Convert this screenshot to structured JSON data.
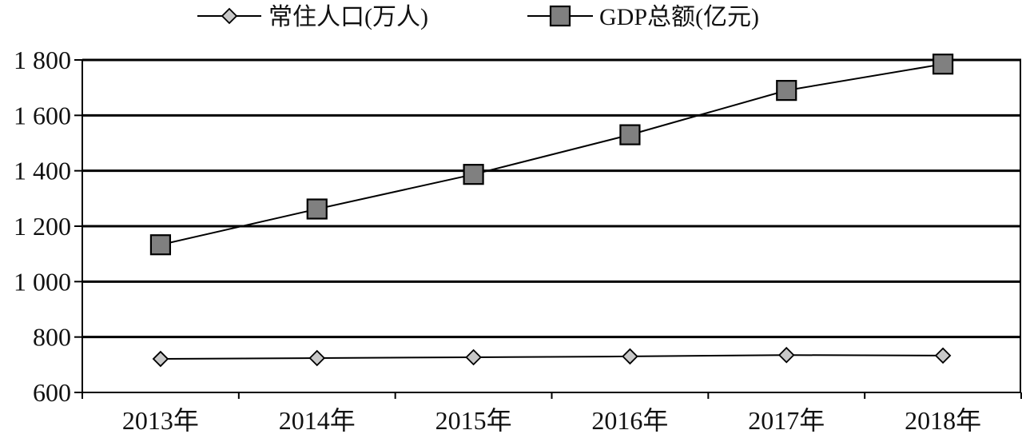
{
  "chart_data": {
    "type": "line",
    "categories": [
      "2013年",
      "2014年",
      "2015年",
      "2016年",
      "2017年",
      "2018年"
    ],
    "series": [
      {
        "name": "常住人口(万人)",
        "values": [
          721,
          724,
          727,
          730,
          735,
          733
        ],
        "marker": "diamond",
        "color": "#c8c8c8"
      },
      {
        "name": "GDP总额(亿元)",
        "values": [
          1133,
          1262,
          1387,
          1530,
          1690,
          1785
        ],
        "marker": "square",
        "color": "#808080"
      }
    ],
    "ylim": [
      600,
      1800
    ],
    "yticks": [
      600,
      800,
      1000,
      1200,
      1400,
      1600,
      1800
    ],
    "ytick_labels": [
      "600",
      "800",
      "1 000",
      "1 200",
      "1 400",
      "1 600",
      "1 800"
    ],
    "grid": true,
    "legend": "top"
  }
}
